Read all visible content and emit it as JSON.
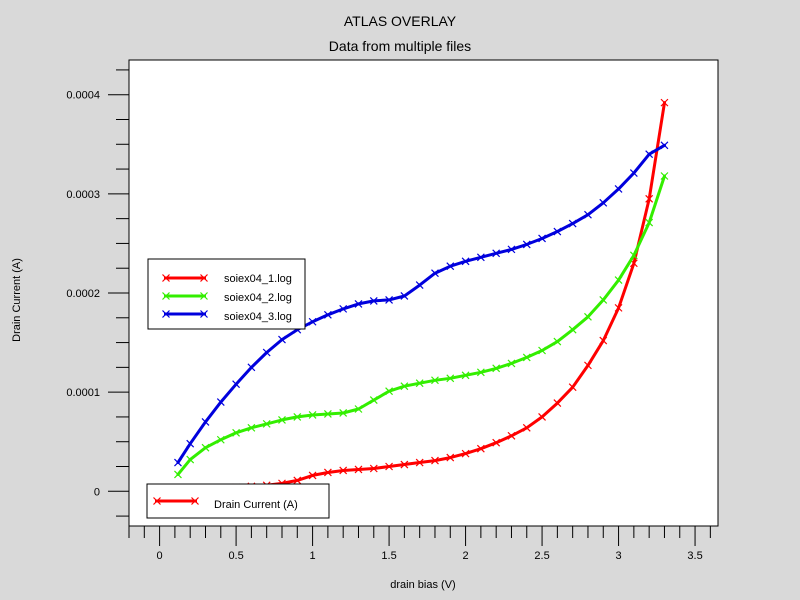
{
  "chart_data": {
    "type": "line",
    "title": "ATLAS OVERLAY",
    "subtitle": "Data from multiple files",
    "xlabel": "drain bias (V)",
    "ylabel": "Drain Current (A)",
    "xlim": [
      -0.2,
      3.65
    ],
    "ylim": [
      -3.5e-05,
      0.000435
    ],
    "x_ticks": [
      0,
      0.5,
      1,
      1.5,
      2,
      2.5,
      3,
      3.5
    ],
    "x_tick_labels": [
      "0",
      "0.5",
      "1",
      "1.5",
      "2",
      "2.5",
      "3",
      "3.5"
    ],
    "y_ticks": [
      0,
      0.0001,
      0.0002,
      0.0003,
      0.0004
    ],
    "y_tick_labels": [
      "0",
      "0.0001",
      "0.0002",
      "0.0003",
      "0.0004"
    ],
    "y_minor_step": 2.5e-05,
    "x_minor_step": 0.1,
    "series": [
      {
        "name": "soiex04_1.log",
        "color": "#ff0000",
        "x": [
          0.1,
          0.2,
          0.3,
          0.4,
          0.5,
          0.6,
          0.7,
          0.8,
          0.9,
          1.0,
          1.1,
          1.2,
          1.3,
          1.4,
          1.5,
          1.6,
          1.7,
          1.8,
          1.9,
          2.0,
          2.1,
          2.2,
          2.3,
          2.4,
          2.5,
          2.6,
          2.7,
          2.8,
          2.9,
          3.0,
          3.1,
          3.2,
          3.3
        ],
        "y": [
          5e-07,
          1e-06,
          2e-06,
          3e-06,
          4e-06,
          5e-06,
          6e-06,
          8e-06,
          1.1e-05,
          1.6e-05,
          1.9e-05,
          2.1e-05,
          2.2e-05,
          2.3e-05,
          2.5e-05,
          2.7e-05,
          2.9e-05,
          3.1e-05,
          3.4e-05,
          3.8e-05,
          4.3e-05,
          4.9e-05,
          5.6e-05,
          6.4e-05,
          7.5e-05,
          8.9e-05,
          0.000105,
          0.000127,
          0.000152,
          0.000185,
          0.00023,
          0.000295,
          0.000392
        ]
      },
      {
        "name": "soiex04_2.log",
        "color": "#33ee00",
        "x": [
          0.12,
          0.2,
          0.3,
          0.4,
          0.5,
          0.6,
          0.7,
          0.8,
          0.9,
          1.0,
          1.1,
          1.2,
          1.3,
          1.4,
          1.5,
          1.6,
          1.7,
          1.8,
          1.9,
          2.0,
          2.1,
          2.2,
          2.3,
          2.4,
          2.5,
          2.6,
          2.7,
          2.8,
          2.9,
          3.0,
          3.1,
          3.2,
          3.3
        ],
        "y": [
          1.7e-05,
          3.2e-05,
          4.4e-05,
          5.2e-05,
          5.9e-05,
          6.4e-05,
          6.8e-05,
          7.2e-05,
          7.5e-05,
          7.7e-05,
          7.8e-05,
          7.9e-05,
          8.3e-05,
          9.2e-05,
          0.000101,
          0.000106,
          0.000109,
          0.000112,
          0.000114,
          0.000117,
          0.00012,
          0.000124,
          0.000129,
          0.000135,
          0.000142,
          0.000151,
          0.000163,
          0.000176,
          0.000193,
          0.000213,
          0.000238,
          0.000271,
          0.000318
        ]
      },
      {
        "name": "soiex04_3.log",
        "color": "#0000dd",
        "x": [
          0.12,
          0.2,
          0.3,
          0.4,
          0.5,
          0.6,
          0.7,
          0.8,
          0.9,
          1.0,
          1.1,
          1.2,
          1.3,
          1.4,
          1.5,
          1.6,
          1.7,
          1.8,
          1.9,
          2.0,
          2.1,
          2.2,
          2.3,
          2.4,
          2.5,
          2.6,
          2.7,
          2.8,
          2.9,
          3.0,
          3.1,
          3.2,
          3.3
        ],
        "y": [
          2.9e-05,
          4.8e-05,
          7e-05,
          9e-05,
          0.000108,
          0.000125,
          0.00014,
          0.000153,
          0.000163,
          0.000171,
          0.000178,
          0.000184,
          0.000189,
          0.000192,
          0.000193,
          0.000197,
          0.000208,
          0.00022,
          0.000227,
          0.000232,
          0.000236,
          0.00024,
          0.000244,
          0.000249,
          0.000255,
          0.000262,
          0.00027,
          0.000279,
          0.000291,
          0.000305,
          0.000321,
          0.00034,
          0.000349
        ]
      }
    ],
    "legend": {
      "placement": "left-middle",
      "entries": [
        "soiex04_1.log",
        "soiex04_2.log",
        "soiex04_3.log"
      ]
    },
    "secondary_legend": {
      "placement": "bottom-left",
      "entry": "Drain Current (A)",
      "color": "#ff0000"
    },
    "grid": false
  }
}
